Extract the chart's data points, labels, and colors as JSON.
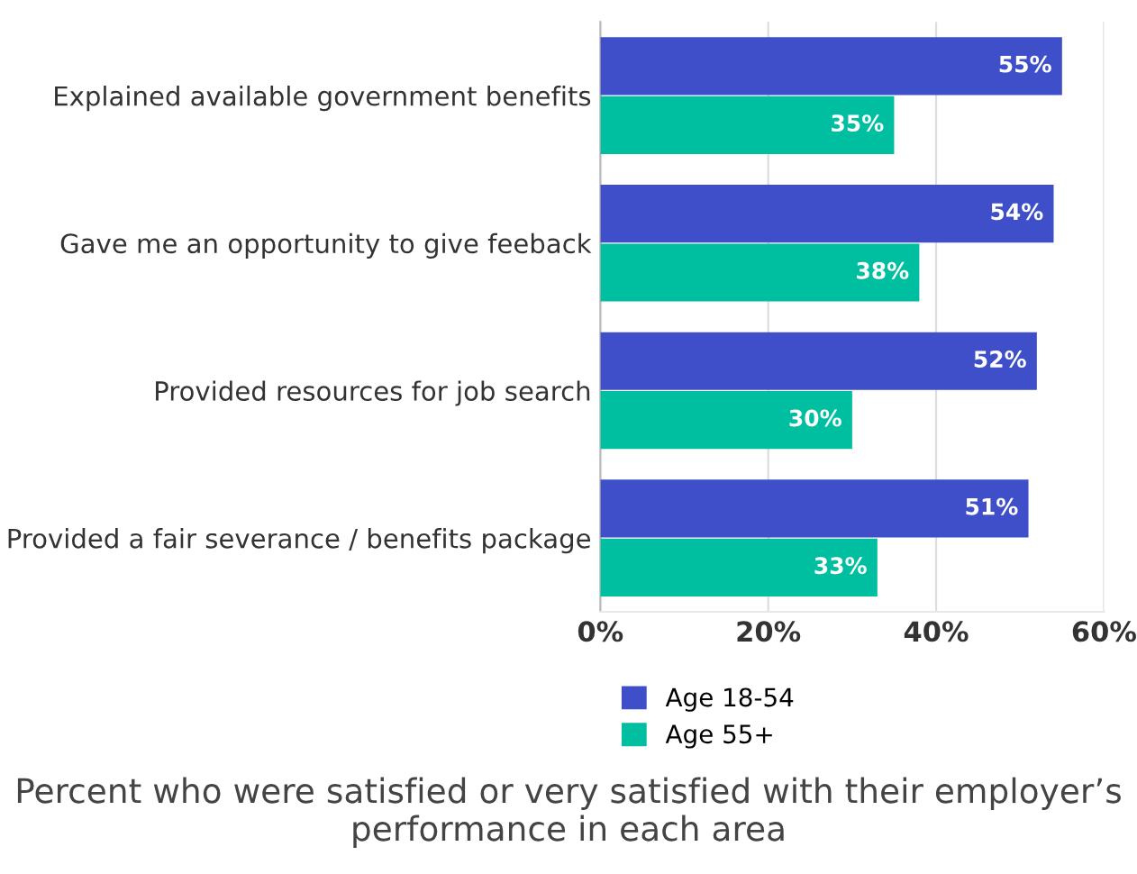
{
  "chart_data": {
    "type": "bar",
    "orientation": "horizontal",
    "title": "Percent who were satisfied or very satisfied with their employer’s performance in each area",
    "categories": [
      "Explained available government benefits",
      "Gave me an opportunity to give feeback",
      "Provided resources for job search",
      "Provided a fair severance / benefits package"
    ],
    "series": [
      {
        "name": "Age 18-54",
        "color": "#3f4fc9",
        "values": [
          55,
          54,
          52,
          51
        ],
        "value_labels": [
          "55%",
          "54%",
          "52%",
          "51%"
        ]
      },
      {
        "name": "Age 55+",
        "color": "#00bfa0",
        "values": [
          35,
          38,
          30,
          33
        ],
        "value_labels": [
          "35%",
          "38%",
          "30%",
          "33%"
        ]
      }
    ],
    "xlim": [
      0,
      60
    ],
    "xticks": [
      {
        "value": 0,
        "label": "0%"
      },
      {
        "value": 20,
        "label": "20%"
      },
      {
        "value": 40,
        "label": "40%"
      },
      {
        "value": 60,
        "label": "60%"
      }
    ],
    "grid": "x",
    "legend": "bottom"
  }
}
